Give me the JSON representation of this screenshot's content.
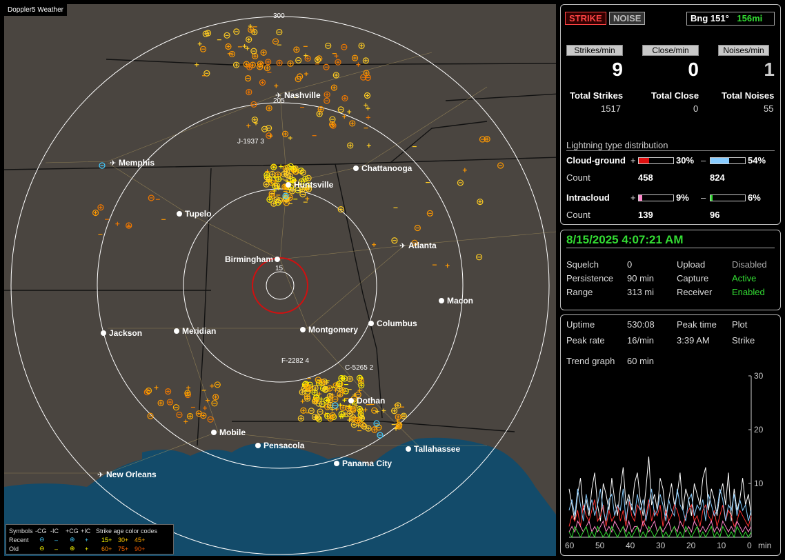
{
  "app": {
    "title": "Doppler5 Weather"
  },
  "header": {
    "strike_label": "STRIKE",
    "noise_label": "NOISE",
    "bearing": "Bng 151°",
    "distance": "156mi"
  },
  "rates": [
    {
      "label": "Strikes/min",
      "value": "9",
      "total_label": "Total Strikes",
      "total": "1517"
    },
    {
      "label": "Close/min",
      "value": "0",
      "total_label": "Total Close",
      "total": "0"
    },
    {
      "label": "Noises/min",
      "value": "1",
      "total_label": "Total Noises",
      "total": "55"
    }
  ],
  "distribution": {
    "title": "Lightning type distribution",
    "cg": {
      "label": "Cloud-ground",
      "plus": "+",
      "minus": "–",
      "pos_pct": "30%",
      "neg_pct": "54%",
      "pos_frac": 0.3,
      "neg_frac": 0.54,
      "count_label": "Count",
      "pos_count": "458",
      "neg_count": "824"
    },
    "ic": {
      "label": "Intracloud",
      "plus": "+",
      "minus": "–",
      "pos_pct": "9%",
      "neg_pct": "6%",
      "pos_frac": 0.09,
      "neg_frac": 0.06,
      "count_label": "Count",
      "pos_count": "139",
      "neg_count": "96"
    }
  },
  "status": {
    "datetime": "8/15/2025 4:07:21 AM",
    "squelch_label": "Squelch",
    "squelch": "0",
    "persistence_label": "Persistence",
    "persistence": "90 min",
    "range_label": "Range",
    "range": "313 mi",
    "upload_label": "Upload",
    "upload": "Disabled",
    "capture_label": "Capture",
    "capture": "Active",
    "receiver_label": "Receiver",
    "receiver": "Enabled"
  },
  "stats": {
    "uptime_label": "Uptime",
    "uptime": "530:08",
    "peak_time_label": "Peak time",
    "peak_time": "3:39 AM",
    "plot_label": "Plot",
    "plot": "Strike",
    "peak_rate_label": "Peak rate",
    "peak_rate": "16/min",
    "trend_label": "Trend graph",
    "trend": "60 min"
  },
  "chart_data": {
    "type": "line",
    "x_ticks": [
      "60",
      "50",
      "40",
      "30",
      "20",
      "10",
      "0"
    ],
    "x_unit": "min",
    "y_ticks": [
      "30",
      "20",
      "10"
    ],
    "ylim": [
      0,
      30
    ],
    "series": [
      {
        "color": "#ffffff",
        "values": [
          9,
          6,
          3,
          8,
          11,
          5,
          7,
          4,
          9,
          12,
          6,
          3,
          10,
          8,
          5,
          11,
          7,
          4,
          9,
          13,
          6,
          8,
          5,
          10,
          12,
          7,
          4,
          9,
          15,
          6,
          8,
          5,
          11,
          9,
          4,
          7,
          10,
          6,
          8,
          12,
          5,
          9,
          7,
          4,
          10,
          8,
          6,
          11,
          13,
          5,
          9,
          7,
          4,
          8,
          10,
          6,
          12,
          3,
          9,
          5,
          7,
          11,
          6,
          8,
          4
        ]
      },
      {
        "color": "#ff3333",
        "values": [
          2,
          4,
          3,
          5,
          2,
          6,
          4,
          3,
          5,
          7,
          3,
          4,
          6,
          2,
          5,
          3,
          4,
          6,
          3,
          5,
          2,
          7,
          4,
          3,
          6,
          5,
          2,
          4,
          7,
          3,
          5,
          4,
          6,
          2,
          5,
          3,
          4,
          6,
          5,
          3,
          2,
          4,
          5,
          6,
          3,
          4,
          2,
          5,
          6,
          4,
          3,
          5,
          2,
          4,
          6,
          3,
          5,
          4,
          2,
          3,
          5,
          4,
          3,
          2,
          4
        ]
      },
      {
        "color": "#88ccff",
        "values": [
          5,
          7,
          4,
          9,
          6,
          3,
          8,
          5,
          7,
          4,
          6,
          9,
          5,
          3,
          7,
          8,
          4,
          6,
          5,
          9,
          3,
          7,
          6,
          4,
          8,
          5,
          7,
          3,
          6,
          9,
          4,
          5,
          8,
          6,
          3,
          7,
          5,
          4,
          9,
          6,
          5,
          3,
          7,
          8,
          4,
          6,
          5,
          7,
          3,
          8,
          6,
          4,
          5,
          9,
          7,
          3,
          6,
          5,
          8,
          4,
          7,
          5,
          6,
          3,
          5
        ]
      },
      {
        "color": "#ff88cc",
        "values": [
          1,
          2,
          1,
          3,
          2,
          1,
          2,
          3,
          1,
          2,
          1,
          2,
          3,
          1,
          2,
          1,
          3,
          2,
          1,
          2,
          1,
          3,
          1,
          2,
          2,
          1,
          3,
          2,
          1,
          2,
          3,
          1,
          2,
          1,
          2,
          3,
          1,
          2,
          1,
          3,
          2,
          1,
          2,
          1,
          3,
          2,
          1,
          2,
          1,
          2,
          3,
          1,
          2,
          1,
          3,
          2,
          1,
          2,
          1,
          3,
          2,
          1,
          2,
          1,
          2
        ]
      },
      {
        "color": "#33dd33",
        "values": [
          1,
          0,
          2,
          1,
          0,
          1,
          2,
          0,
          1,
          0,
          2,
          1,
          0,
          1,
          0,
          2,
          1,
          0,
          1,
          2,
          0,
          1,
          0,
          1,
          2,
          0,
          1,
          0,
          2,
          1,
          0,
          1,
          2,
          0,
          1,
          0,
          1,
          2,
          0,
          1,
          0,
          2,
          1,
          0,
          1,
          2,
          0,
          1,
          0,
          1,
          2,
          0,
          1,
          0,
          2,
          1,
          0,
          1,
          0,
          2,
          1,
          0,
          1,
          0,
          1
        ]
      }
    ]
  },
  "map": {
    "ring_labels": [
      "300",
      "205",
      "15"
    ],
    "cities": [
      "Nashville",
      "Memphis",
      "Chattanooga",
      "Huntsville",
      "Tupelo",
      "Atlanta",
      "Birmingham",
      "Macon",
      "Jackson",
      "Meridian",
      "Montgomery",
      "Columbus",
      "Dothan",
      "Mobile",
      "Pensacola",
      "Tallahassee",
      "Panama City",
      "New Orleans"
    ],
    "storm_labels": [
      "J-1937 3",
      "F-2282 4",
      "C-5265 2"
    ]
  },
  "legend": {
    "symbols": "Symbols",
    "neg_cg": "-CG",
    "neg_ic": "-IC",
    "pos_cg": "+CG",
    "pos_ic": "+IC",
    "age_title": "Strike age color codes",
    "recent": "Recent",
    "old": "Old",
    "ages_recent": [
      "15+",
      "30+",
      "45+"
    ],
    "ages_old": [
      "60+",
      "75+",
      "90+"
    ]
  }
}
